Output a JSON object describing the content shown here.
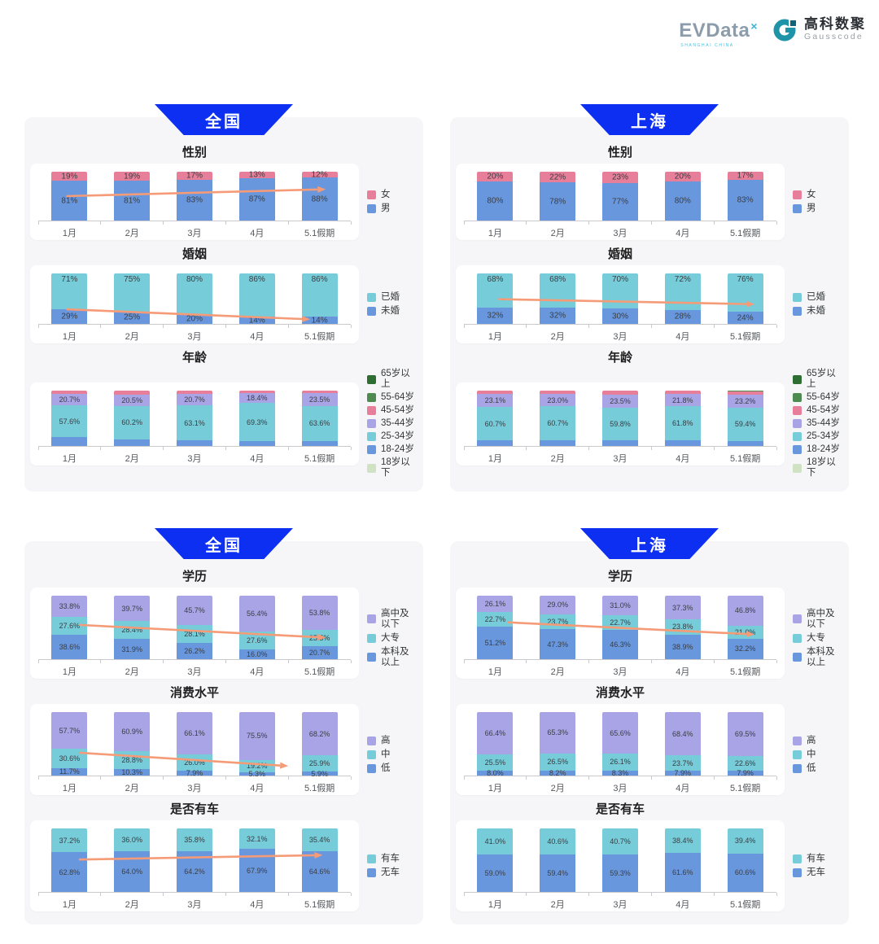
{
  "header": {
    "evdata_logo": {
      "text": "EVData",
      "sup": "×",
      "subtext": "SHANGHAI CHINA"
    },
    "gausscode_logo": {
      "cn": "高科数聚",
      "en": "Gausscode"
    }
  },
  "colors": {
    "banner_blue": "#0d2ff2",
    "arrow_orange": "#f59b77",
    "panel_bg": "#f6f6f8",
    "blue": "#6897de",
    "teal": "#76ccd8",
    "pink": "#e87f9a",
    "purple": "#a8a4e6",
    "green_dark": "#2f6e33",
    "green": "#4d8b50",
    "green_light": "#cfe2c4",
    "gausscode_teal": "#1f93a8"
  },
  "months": [
    "1月",
    "2月",
    "3月",
    "4月",
    "5.1假期"
  ],
  "groups": [
    {
      "region": "全国",
      "charts": [
        "cn_gender",
        "cn_marriage",
        "cn_age"
      ]
    },
    {
      "region": "上海",
      "charts": [
        "sh_gender",
        "sh_marriage",
        "sh_age"
      ]
    },
    {
      "region": "全国",
      "charts": [
        "cn_edu",
        "cn_consume",
        "cn_car"
      ]
    },
    {
      "region": "上海",
      "charts": [
        "sh_edu",
        "sh_consume",
        "sh_car"
      ]
    }
  ],
  "chart_data": [
    {
      "id": "cn_gender",
      "group": 0,
      "region": "全国",
      "type": "bar",
      "stacked": true,
      "title": "性别",
      "categories": [
        "1月",
        "2月",
        "3月",
        "4月",
        "5.1假期"
      ],
      "unit": "%",
      "decimals": 0,
      "ylim": [
        0,
        100
      ],
      "grid": false,
      "legend_position": "right",
      "series": [
        {
          "name": "男",
          "color": "#6897de",
          "values": [
            81,
            81,
            83,
            87,
            88
          ],
          "show_labels": true,
          "label_align": "center"
        },
        {
          "name": "女",
          "color": "#e87f9a",
          "values": [
            19,
            19,
            17,
            13,
            12
          ],
          "show_labels": true,
          "label_align": "center"
        }
      ],
      "legend": [
        {
          "label": "女",
          "color": "#e87f9a"
        },
        {
          "label": "男",
          "color": "#6897de"
        }
      ],
      "trend_arrow": {
        "x1": 0.09,
        "y1": 0.5,
        "x2": 0.92,
        "y2": 0.36
      }
    },
    {
      "id": "cn_marriage",
      "group": 0,
      "region": "全国",
      "type": "bar",
      "stacked": true,
      "title": "婚姻",
      "categories": [
        "1月",
        "2月",
        "3月",
        "4月",
        "5.1假期"
      ],
      "unit": "%",
      "decimals": 0,
      "ylim": [
        0,
        100
      ],
      "grid": false,
      "legend_position": "right",
      "series": [
        {
          "name": "未婚",
          "color": "#6897de",
          "values": [
            29,
            25,
            20,
            14,
            14
          ],
          "show_labels": true,
          "label_align": "center"
        },
        {
          "name": "已婚",
          "color": "#76ccd8",
          "values": [
            71,
            75,
            80,
            86,
            86
          ],
          "show_labels": true,
          "label_align": "top"
        }
      ],
      "legend": [
        {
          "label": "已婚",
          "color": "#76ccd8"
        },
        {
          "label": "未婚",
          "color": "#6897de"
        }
      ],
      "trend_arrow": {
        "x1": 0.09,
        "y1": 0.71,
        "x2": 0.87,
        "y2": 0.91
      }
    },
    {
      "id": "cn_age",
      "group": 0,
      "region": "全国",
      "type": "bar",
      "stacked": true,
      "title": "年龄",
      "categories": [
        "1月",
        "2月",
        "3月",
        "4月",
        "5.1假期"
      ],
      "unit": "%",
      "decimals": 1,
      "ylim": [
        0,
        100
      ],
      "grid": false,
      "legend_position": "right",
      "series": [
        {
          "name": "18-24岁",
          "color": "#6897de",
          "values": [
            15.2,
            11.3,
            9.5,
            7.5,
            8.0
          ],
          "show_labels": false,
          "label_align": "center"
        },
        {
          "name": "25-34岁",
          "color": "#76ccd8",
          "values": [
            57.6,
            60.2,
            63.1,
            69.3,
            63.6
          ],
          "show_labels": true,
          "label_align": "center"
        },
        {
          "name": "35-44岁",
          "color": "#a8a4e6",
          "values": [
            20.7,
            20.5,
            20.7,
            18.4,
            23.5
          ],
          "show_labels": true,
          "label_align": "center"
        },
        {
          "name": "45-54岁",
          "color": "#e87f9a",
          "values": [
            6.5,
            8.0,
            6.7,
            4.8,
            4.9
          ],
          "show_labels": false,
          "label_align": "center"
        }
      ],
      "legend": [
        {
          "label": "65岁以上",
          "color": "#2f6e33"
        },
        {
          "label": "55-64岁",
          "color": "#4d8b50"
        },
        {
          "label": "45-54岁",
          "color": "#e87f9a"
        },
        {
          "label": "35-44岁",
          "color": "#a8a4e6"
        },
        {
          "label": "25-34岁",
          "color": "#76ccd8"
        },
        {
          "label": "18-24岁",
          "color": "#6897de"
        },
        {
          "label": "18岁以下",
          "color": "#cfe2c4"
        }
      ],
      "trend_arrow": null
    },
    {
      "id": "sh_gender",
      "group": 1,
      "region": "上海",
      "type": "bar",
      "stacked": true,
      "title": "性别",
      "categories": [
        "1月",
        "2月",
        "3月",
        "4月",
        "5.1假期"
      ],
      "unit": "%",
      "decimals": 0,
      "ylim": [
        0,
        100
      ],
      "grid": false,
      "legend_position": "right",
      "series": [
        {
          "name": "男",
          "color": "#6897de",
          "values": [
            80,
            78,
            77,
            80,
            83
          ],
          "show_labels": true,
          "label_align": "center"
        },
        {
          "name": "女",
          "color": "#e87f9a",
          "values": [
            20,
            22,
            23,
            20,
            17
          ],
          "show_labels": true,
          "label_align": "center"
        }
      ],
      "legend": [
        {
          "label": "女",
          "color": "#e87f9a"
        },
        {
          "label": "男",
          "color": "#6897de"
        }
      ],
      "trend_arrow": null
    },
    {
      "id": "sh_marriage",
      "group": 1,
      "region": "上海",
      "type": "bar",
      "stacked": true,
      "title": "婚姻",
      "categories": [
        "1月",
        "2月",
        "3月",
        "4月",
        "5.1假期"
      ],
      "unit": "%",
      "decimals": 0,
      "ylim": [
        0,
        100
      ],
      "grid": false,
      "legend_position": "right",
      "series": [
        {
          "name": "未婚",
          "color": "#6897de",
          "values": [
            32,
            32,
            30,
            28,
            24
          ],
          "show_labels": true,
          "label_align": "center"
        },
        {
          "name": "已婚",
          "color": "#76ccd8",
          "values": [
            68,
            68,
            70,
            72,
            76
          ],
          "show_labels": true,
          "label_align": "top"
        }
      ],
      "legend": [
        {
          "label": "已婚",
          "color": "#76ccd8"
        },
        {
          "label": "未婚",
          "color": "#6897de"
        }
      ],
      "trend_arrow": {
        "x1": 0.11,
        "y1": 0.51,
        "x2": 0.93,
        "y2": 0.61
      }
    },
    {
      "id": "sh_age",
      "group": 1,
      "region": "上海",
      "type": "bar",
      "stacked": true,
      "title": "年龄",
      "categories": [
        "1月",
        "2月",
        "3月",
        "4月",
        "5.1假期"
      ],
      "unit": "%",
      "decimals": 1,
      "ylim": [
        0,
        100
      ],
      "grid": false,
      "legend_position": "right",
      "series": [
        {
          "name": "18-24岁",
          "color": "#6897de",
          "values": [
            9.0,
            10.0,
            9.3,
            9.5,
            8.7
          ],
          "show_labels": false,
          "label_align": "center"
        },
        {
          "name": "25-34岁",
          "color": "#76ccd8",
          "values": [
            60.7,
            60.7,
            59.8,
            61.8,
            59.4
          ],
          "show_labels": true,
          "label_align": "center"
        },
        {
          "name": "35-44岁",
          "color": "#a8a4e6",
          "values": [
            23.1,
            23.0,
            23.5,
            21.8,
            23.2
          ],
          "show_labels": true,
          "label_align": "center"
        },
        {
          "name": "45-54岁",
          "color": "#e87f9a",
          "values": [
            7.2,
            6.3,
            7.4,
            6.9,
            6.5
          ],
          "show_labels": false,
          "label_align": "center"
        },
        {
          "name": "55-64岁",
          "color": "#4d8b50",
          "values": [
            0,
            0,
            0,
            0,
            2.2
          ],
          "show_labels": false,
          "label_align": "center"
        }
      ],
      "legend": [
        {
          "label": "65岁以上",
          "color": "#2f6e33"
        },
        {
          "label": "55-64岁",
          "color": "#4d8b50"
        },
        {
          "label": "45-54岁",
          "color": "#e87f9a"
        },
        {
          "label": "35-44岁",
          "color": "#a8a4e6"
        },
        {
          "label": "25-34岁",
          "color": "#76ccd8"
        },
        {
          "label": "18-24岁",
          "color": "#6897de"
        },
        {
          "label": "18岁以下",
          "color": "#cfe2c4"
        }
      ],
      "trend_arrow": null
    },
    {
      "id": "cn_edu",
      "group": 2,
      "region": "全国",
      "type": "bar",
      "stacked": true,
      "title": "学历",
      "categories": [
        "1月",
        "2月",
        "3月",
        "4月",
        "5.1假期"
      ],
      "unit": "%",
      "decimals": 1,
      "ylim": [
        0,
        100
      ],
      "grid": false,
      "legend_position": "right",
      "series": [
        {
          "name": "本科及以上",
          "color": "#6897de",
          "values": [
            38.6,
            31.9,
            26.2,
            16.0,
            20.7
          ],
          "show_labels": true,
          "label_align": "center"
        },
        {
          "name": "大专",
          "color": "#76ccd8",
          "values": [
            27.6,
            28.4,
            28.1,
            27.6,
            25.5
          ],
          "show_labels": true,
          "label_align": "center"
        },
        {
          "name": "高中及以下",
          "color": "#a8a4e6",
          "values": [
            33.8,
            39.7,
            45.7,
            56.4,
            53.8
          ],
          "show_labels": true,
          "label_align": "center"
        }
      ],
      "legend": [
        {
          "label": "高中及以下",
          "color": "#a8a4e6"
        },
        {
          "label": "大专",
          "color": "#76ccd8"
        },
        {
          "label": "本科及以上",
          "color": "#6897de"
        }
      ],
      "trend_arrow": {
        "x1": 0.13,
        "y1": 0.46,
        "x2": 0.92,
        "y2": 0.66
      }
    },
    {
      "id": "cn_consume",
      "group": 2,
      "region": "全国",
      "type": "bar",
      "stacked": true,
      "title": "消费水平",
      "categories": [
        "1月",
        "2月",
        "3月",
        "4月",
        "5.1假期"
      ],
      "unit": "%",
      "decimals": 1,
      "ylim": [
        0,
        100
      ],
      "grid": false,
      "legend_position": "right",
      "series": [
        {
          "name": "低",
          "color": "#6897de",
          "values": [
            11.7,
            10.3,
            7.9,
            5.3,
            5.9
          ],
          "show_labels": true,
          "label_align": "center"
        },
        {
          "name": "中",
          "color": "#76ccd8",
          "values": [
            30.6,
            28.8,
            26.0,
            19.2,
            25.9
          ],
          "show_labels": true,
          "label_align": "center"
        },
        {
          "name": "高",
          "color": "#a8a4e6",
          "values": [
            57.7,
            60.9,
            66.1,
            75.5,
            68.2
          ],
          "show_labels": true,
          "label_align": "center"
        }
      ],
      "legend": [
        {
          "label": "高",
          "color": "#a8a4e6"
        },
        {
          "label": "中",
          "color": "#76ccd8"
        },
        {
          "label": "低",
          "color": "#6897de"
        }
      ],
      "trend_arrow": {
        "x1": 0.13,
        "y1": 0.64,
        "x2": 0.8,
        "y2": 0.85
      }
    },
    {
      "id": "cn_car",
      "group": 2,
      "region": "全国",
      "type": "bar",
      "stacked": true,
      "title": "是否有车",
      "categories": [
        "1月",
        "2月",
        "3月",
        "4月",
        "5.1假期"
      ],
      "unit": "%",
      "decimals": 1,
      "ylim": [
        0,
        100
      ],
      "grid": false,
      "legend_position": "right",
      "series": [
        {
          "name": "无车",
          "color": "#6897de",
          "values": [
            62.8,
            64.0,
            64.2,
            67.9,
            64.6
          ],
          "show_labels": true,
          "label_align": "center"
        },
        {
          "name": "有车",
          "color": "#76ccd8",
          "values": [
            37.2,
            36.0,
            35.8,
            32.1,
            35.4
          ],
          "show_labels": true,
          "label_align": "center"
        }
      ],
      "legend": [
        {
          "label": "有车",
          "color": "#76ccd8"
        },
        {
          "label": "无车",
          "color": "#6897de"
        }
      ],
      "trend_arrow": {
        "x1": 0.13,
        "y1": 0.49,
        "x2": 0.91,
        "y2": 0.42
      }
    },
    {
      "id": "sh_edu",
      "group": 3,
      "region": "上海",
      "type": "bar",
      "stacked": true,
      "title": "学历",
      "categories": [
        "1月",
        "2月",
        "3月",
        "4月",
        "5.1假期"
      ],
      "unit": "%",
      "decimals": 1,
      "ylim": [
        0,
        100
      ],
      "grid": false,
      "legend_position": "right",
      "series": [
        {
          "name": "本科及以上",
          "color": "#6897de",
          "values": [
            51.2,
            47.3,
            46.3,
            38.9,
            32.2
          ],
          "show_labels": true,
          "label_align": "center"
        },
        {
          "name": "大专",
          "color": "#76ccd8",
          "values": [
            22.7,
            23.7,
            22.7,
            23.8,
            21.0
          ],
          "show_labels": true,
          "label_align": "center"
        },
        {
          "name": "高中及以下",
          "color": "#a8a4e6",
          "values": [
            26.1,
            29.0,
            31.0,
            37.3,
            46.8
          ],
          "show_labels": true,
          "label_align": "center"
        }
      ],
      "legend": [
        {
          "label": "高中及以下",
          "color": "#a8a4e6"
        },
        {
          "label": "大专",
          "color": "#76ccd8"
        },
        {
          "label": "本科及以上",
          "color": "#6897de"
        }
      ],
      "trend_arrow": {
        "x1": 0.14,
        "y1": 0.42,
        "x2": 0.93,
        "y2": 0.61
      }
    },
    {
      "id": "sh_consume",
      "group": 3,
      "region": "上海",
      "type": "bar",
      "stacked": true,
      "title": "消费水平",
      "categories": [
        "1月",
        "2月",
        "3月",
        "4月",
        "5.1假期"
      ],
      "unit": "%",
      "decimals": 1,
      "ylim": [
        0,
        100
      ],
      "grid": false,
      "legend_position": "right",
      "series": [
        {
          "name": "低",
          "color": "#6897de",
          "values": [
            8.0,
            8.2,
            8.3,
            7.9,
            7.9
          ],
          "show_labels": true,
          "label_align": "center"
        },
        {
          "name": "中",
          "color": "#76ccd8",
          "values": [
            25.5,
            26.5,
            26.1,
            23.7,
            22.6
          ],
          "show_labels": true,
          "label_align": "center"
        },
        {
          "name": "高",
          "color": "#a8a4e6",
          "values": [
            66.4,
            65.3,
            65.6,
            68.4,
            69.5
          ],
          "show_labels": true,
          "label_align": "center"
        }
      ],
      "legend": [
        {
          "label": "高",
          "color": "#a8a4e6"
        },
        {
          "label": "中",
          "color": "#76ccd8"
        },
        {
          "label": "低",
          "color": "#6897de"
        }
      ],
      "trend_arrow": null
    },
    {
      "id": "sh_car",
      "group": 3,
      "region": "上海",
      "type": "bar",
      "stacked": true,
      "title": "是否有车",
      "categories": [
        "1月",
        "2月",
        "3月",
        "4月",
        "5.1假期"
      ],
      "unit": "%",
      "decimals": 1,
      "ylim": [
        0,
        100
      ],
      "grid": false,
      "legend_position": "right",
      "series": [
        {
          "name": "无车",
          "color": "#6897de",
          "values": [
            59.0,
            59.4,
            59.3,
            61.6,
            60.6
          ],
          "show_labels": true,
          "label_align": "center"
        },
        {
          "name": "有车",
          "color": "#76ccd8",
          "values": [
            41.0,
            40.6,
            40.7,
            38.4,
            39.4
          ],
          "show_labels": true,
          "label_align": "center"
        }
      ],
      "legend": [
        {
          "label": "有车",
          "color": "#76ccd8"
        },
        {
          "label": "无车",
          "color": "#6897de"
        }
      ],
      "trend_arrow": null
    }
  ]
}
